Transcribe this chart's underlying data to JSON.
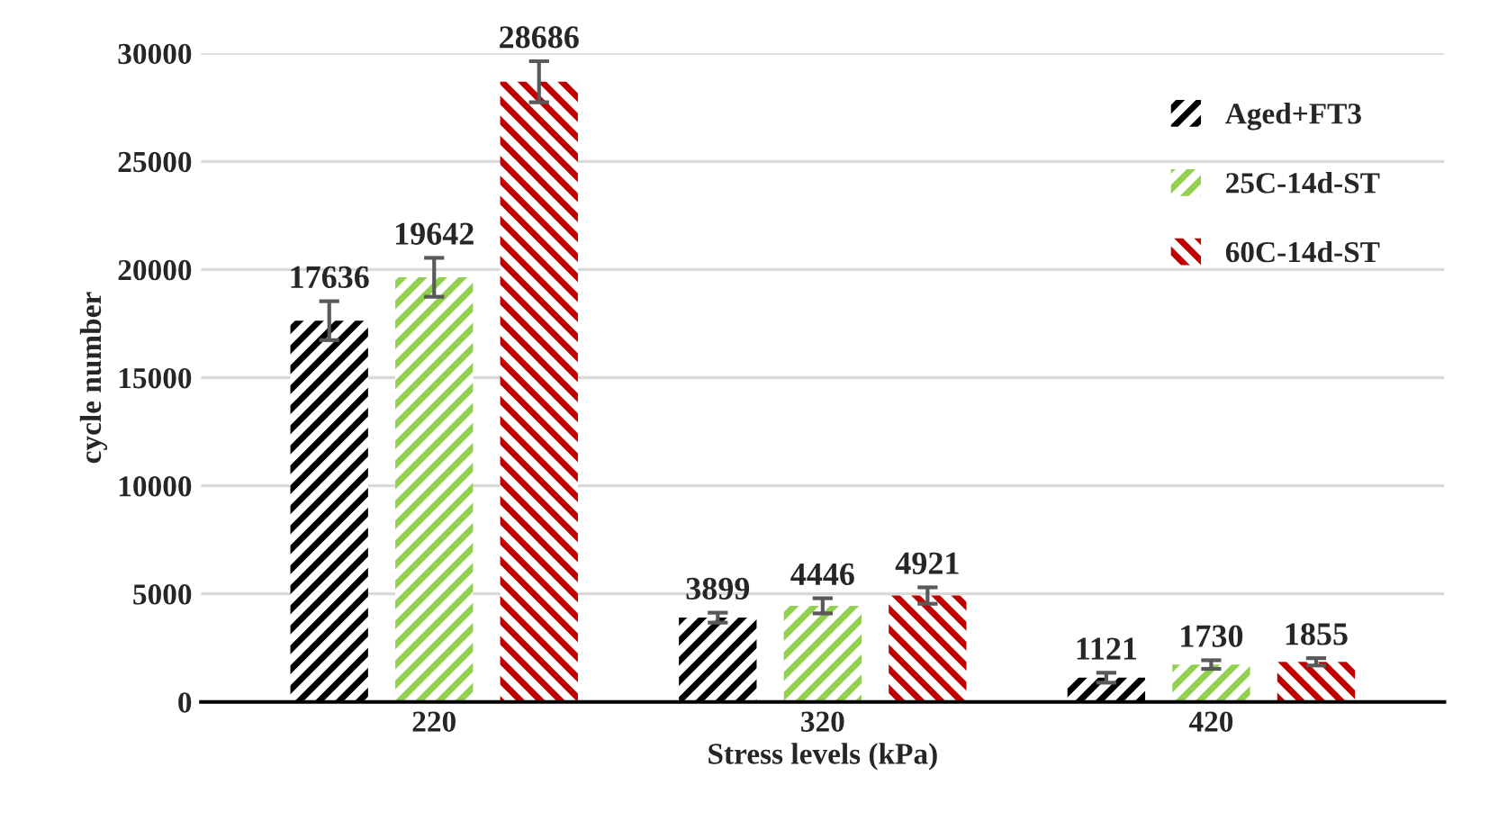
{
  "chart_data": {
    "type": "bar",
    "xlabel": "Stress levels (kPa)",
    "ylabel": "cycle number",
    "categories": [
      "220",
      "320",
      "420"
    ],
    "series": [
      {
        "name": "Aged+FT3",
        "color": "#000000",
        "values": [
          17636,
          3899,
          1121
        ],
        "errors": [
          900,
          230,
          230
        ]
      },
      {
        "name": "25C-14d-ST",
        "color": "#92d050",
        "values": [
          19642,
          4446,
          1730
        ],
        "errors": [
          900,
          350,
          200
        ]
      },
      {
        "name": "60C-14d-ST",
        "color": "#c00000",
        "values": [
          28686,
          4921,
          1855
        ],
        "errors": [
          950,
          380,
          170
        ]
      }
    ],
    "ylim": [
      0,
      30000
    ],
    "yticks": [
      0,
      5000,
      10000,
      15000,
      20000,
      25000,
      30000
    ],
    "grid": "y",
    "legend": "top right",
    "data_labels": true
  }
}
